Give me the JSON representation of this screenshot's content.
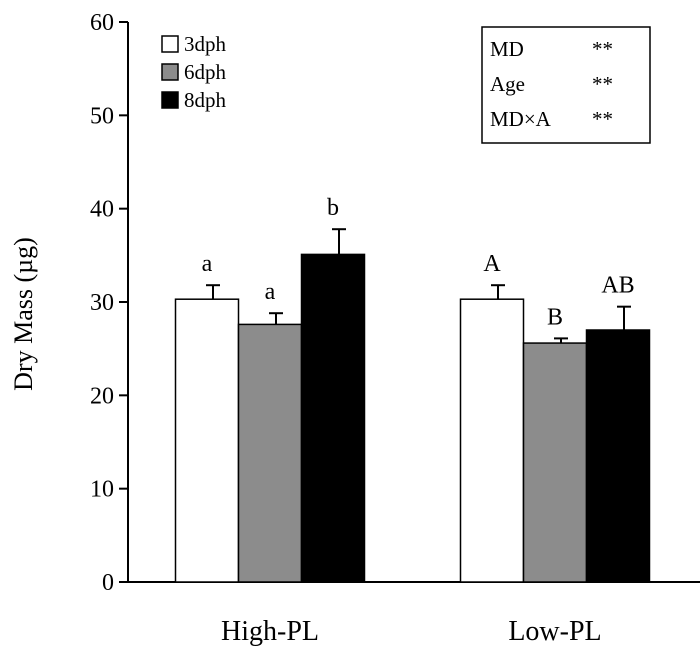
{
  "chart_data": {
    "type": "bar",
    "ylabel": "Dry Mass (µg)",
    "xlabel": "",
    "ylim": [
      0,
      60
    ],
    "yticks": [
      0,
      10,
      20,
      30,
      40,
      50,
      60
    ],
    "categories": [
      "High-PL",
      "Low-PL"
    ],
    "series": [
      {
        "name": "3dph",
        "color": "#ffffff",
        "values": [
          30.3,
          30.3
        ],
        "errors": [
          1.5,
          1.5
        ],
        "labels": [
          "a",
          "A"
        ]
      },
      {
        "name": "6dph",
        "color": "#8c8c8c",
        "values": [
          27.6,
          25.6
        ],
        "errors": [
          1.2,
          0.5
        ],
        "labels": [
          "a",
          "B"
        ]
      },
      {
        "name": "8dph",
        "color": "#000000",
        "values": [
          35.1,
          27.0
        ],
        "errors": [
          2.7,
          2.5
        ],
        "labels": [
          "b",
          "AB"
        ]
      }
    ],
    "legend_position": "top-left",
    "grid": false,
    "stats_table": [
      {
        "factor": "MD",
        "significance": "**"
      },
      {
        "factor": "Age",
        "significance": "**"
      },
      {
        "factor": "MD×A",
        "significance": "**"
      }
    ]
  }
}
